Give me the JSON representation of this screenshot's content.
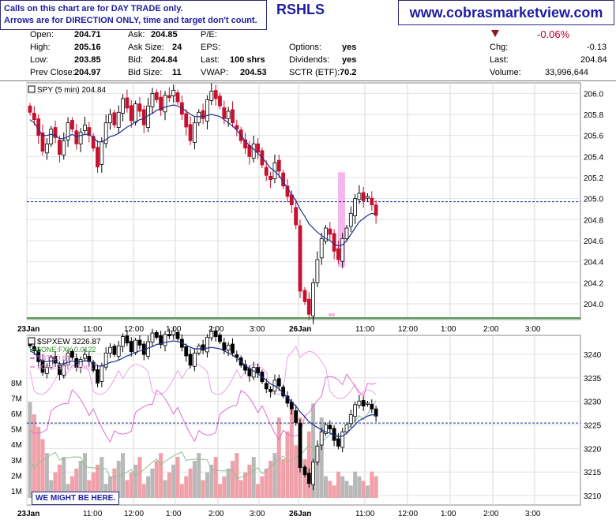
{
  "note": {
    "line1": "Calls on this chart are for DAY TRADE only.",
    "line2": "Arrows are for DIRECTION ONLY, time and target don't count."
  },
  "ticker": "RSHLS",
  "site": "www.cobrasmarketview.com",
  "quote": {
    "open_label": "Open:",
    "open": "204.71",
    "high_label": "High:",
    "high": "205.16",
    "low_label": "Low:",
    "low": "203.85",
    "prev_label": "Prev Close:",
    "prev": "204.97",
    "ask_label": "Ask:",
    "ask": "204.85",
    "asksize_label": "Ask Size:",
    "asksize": "24",
    "bid_label": "Bid:",
    "bid": "204.84",
    "bidsize_label": "Bid Size:",
    "bidsize": "11",
    "pe_label": "P/E:",
    "pe": "",
    "eps_label": "EPS:",
    "eps": "",
    "last_label": "Last:",
    "last_vol": "100 shrs",
    "vwap_label": "VWAP:",
    "vwap": "204.53",
    "options_label": "Options:",
    "options": "yes",
    "div_label": "Dividends:",
    "div": "yes",
    "sctr_label": "SCTR (ETF):",
    "sctr": "70.2",
    "pct": "-0.06%",
    "chg_label": "Chg:",
    "chg": "-0.13",
    "last2_label": "Last:",
    "last2": "204.84",
    "volume_label": "Volume:",
    "volume": "33,996,644"
  },
  "annotation": "WE MIGHT BE HERE.",
  "colors": {
    "up": "#000000",
    "down": "#c8102e",
    "ma": "#1f2f8f",
    "pink": "#f4b6ec",
    "dashed": "#1f2f8f",
    "fxy": "#8fbf8f",
    "tbt": "#e06fd0",
    "vix": "#e6a3e6",
    "vol_down": "#f0a0a8",
    "vol_up": "#b8b8b8"
  },
  "chart_data": [
    {
      "type": "candlestick",
      "title": "SPY (5 min) 204.84",
      "x_tick_labels": [
        "23Jan",
        "11:00",
        "12:00",
        "1:00",
        "2:00",
        "3:00",
        "26Jan",
        "11:00",
        "12:00",
        "1:00",
        "2:00",
        "3:00"
      ],
      "y_tick_labels": [
        "204.0",
        "204.2",
        "204.4",
        "204.6",
        "204.8",
        "205.0",
        "205.2",
        "205.4",
        "205.6",
        "205.8",
        "206.0"
      ],
      "ylim": [
        203.85,
        206.1
      ],
      "reference_line": 204.97,
      "closes": [
        205.82,
        205.75,
        205.6,
        205.45,
        205.52,
        205.66,
        205.58,
        205.42,
        205.55,
        205.72,
        205.66,
        205.52,
        205.63,
        205.7,
        205.6,
        205.48,
        205.3,
        205.54,
        205.72,
        205.8,
        205.7,
        205.82,
        205.95,
        205.86,
        205.74,
        205.9,
        205.83,
        205.7,
        205.88,
        206.0,
        205.94,
        205.84,
        205.98,
        205.96,
        206.03,
        205.92,
        205.8,
        205.68,
        205.55,
        205.72,
        205.82,
        205.76,
        205.94,
        206.02,
        205.95,
        205.88,
        205.76,
        205.83,
        205.72,
        205.66,
        205.55,
        205.48,
        205.4,
        205.52,
        205.44,
        205.32,
        205.22,
        205.18,
        205.34,
        205.26,
        205.12,
        205.02,
        204.94,
        204.75,
        204.12,
        204.02,
        203.9,
        204.2,
        204.42,
        204.62,
        204.72,
        204.66,
        204.5,
        204.42,
        204.62,
        204.72,
        204.86,
        205.0,
        205.05,
        204.98,
        205.02,
        204.94,
        204.84
      ],
      "ma": [
        205.75,
        205.72,
        205.66,
        205.6,
        205.6,
        205.61,
        205.6,
        205.57,
        205.57,
        205.59,
        205.61,
        205.59,
        205.6,
        205.61,
        205.61,
        205.58,
        205.54,
        205.54,
        205.56,
        205.59,
        205.6,
        205.62,
        205.65,
        205.68,
        205.7,
        205.73,
        205.75,
        205.76,
        205.79,
        205.81,
        205.84,
        205.85,
        205.87,
        205.88,
        205.89,
        205.88,
        205.86,
        205.83,
        205.8,
        205.78,
        205.78,
        205.78,
        205.79,
        205.8,
        205.79,
        205.78,
        205.75,
        205.72,
        205.69,
        205.65,
        205.6,
        205.55,
        205.5,
        205.47,
        205.43,
        205.39,
        205.34,
        205.29,
        205.26,
        205.22,
        205.16,
        205.1,
        205.04,
        204.98,
        204.9,
        204.83,
        204.76,
        204.72,
        204.68,
        204.65,
        204.62,
        204.6,
        204.57,
        204.55,
        204.56,
        204.6,
        204.66,
        204.72,
        204.78,
        204.81,
        204.84,
        204.86,
        204.85
      ]
    },
    {
      "type": "candlestick",
      "title": "$SPXEW 3226.87",
      "legend": [
        "$ONE:FXY 0.0122",
        "TBT 40.61",
        "$ONE:$VIX 0.0617"
      ],
      "y_tick_labels": [
        "3210",
        "3215",
        "3220",
        "3225",
        "3230",
        "3235",
        "3240"
      ],
      "volume_tick_labels": [
        "1M",
        "2M",
        "3M",
        "4M",
        "5M",
        "6M",
        "7M",
        "8M"
      ],
      "ylim": [
        3208,
        3244
      ],
      "reference_line": 3225.4
    }
  ]
}
